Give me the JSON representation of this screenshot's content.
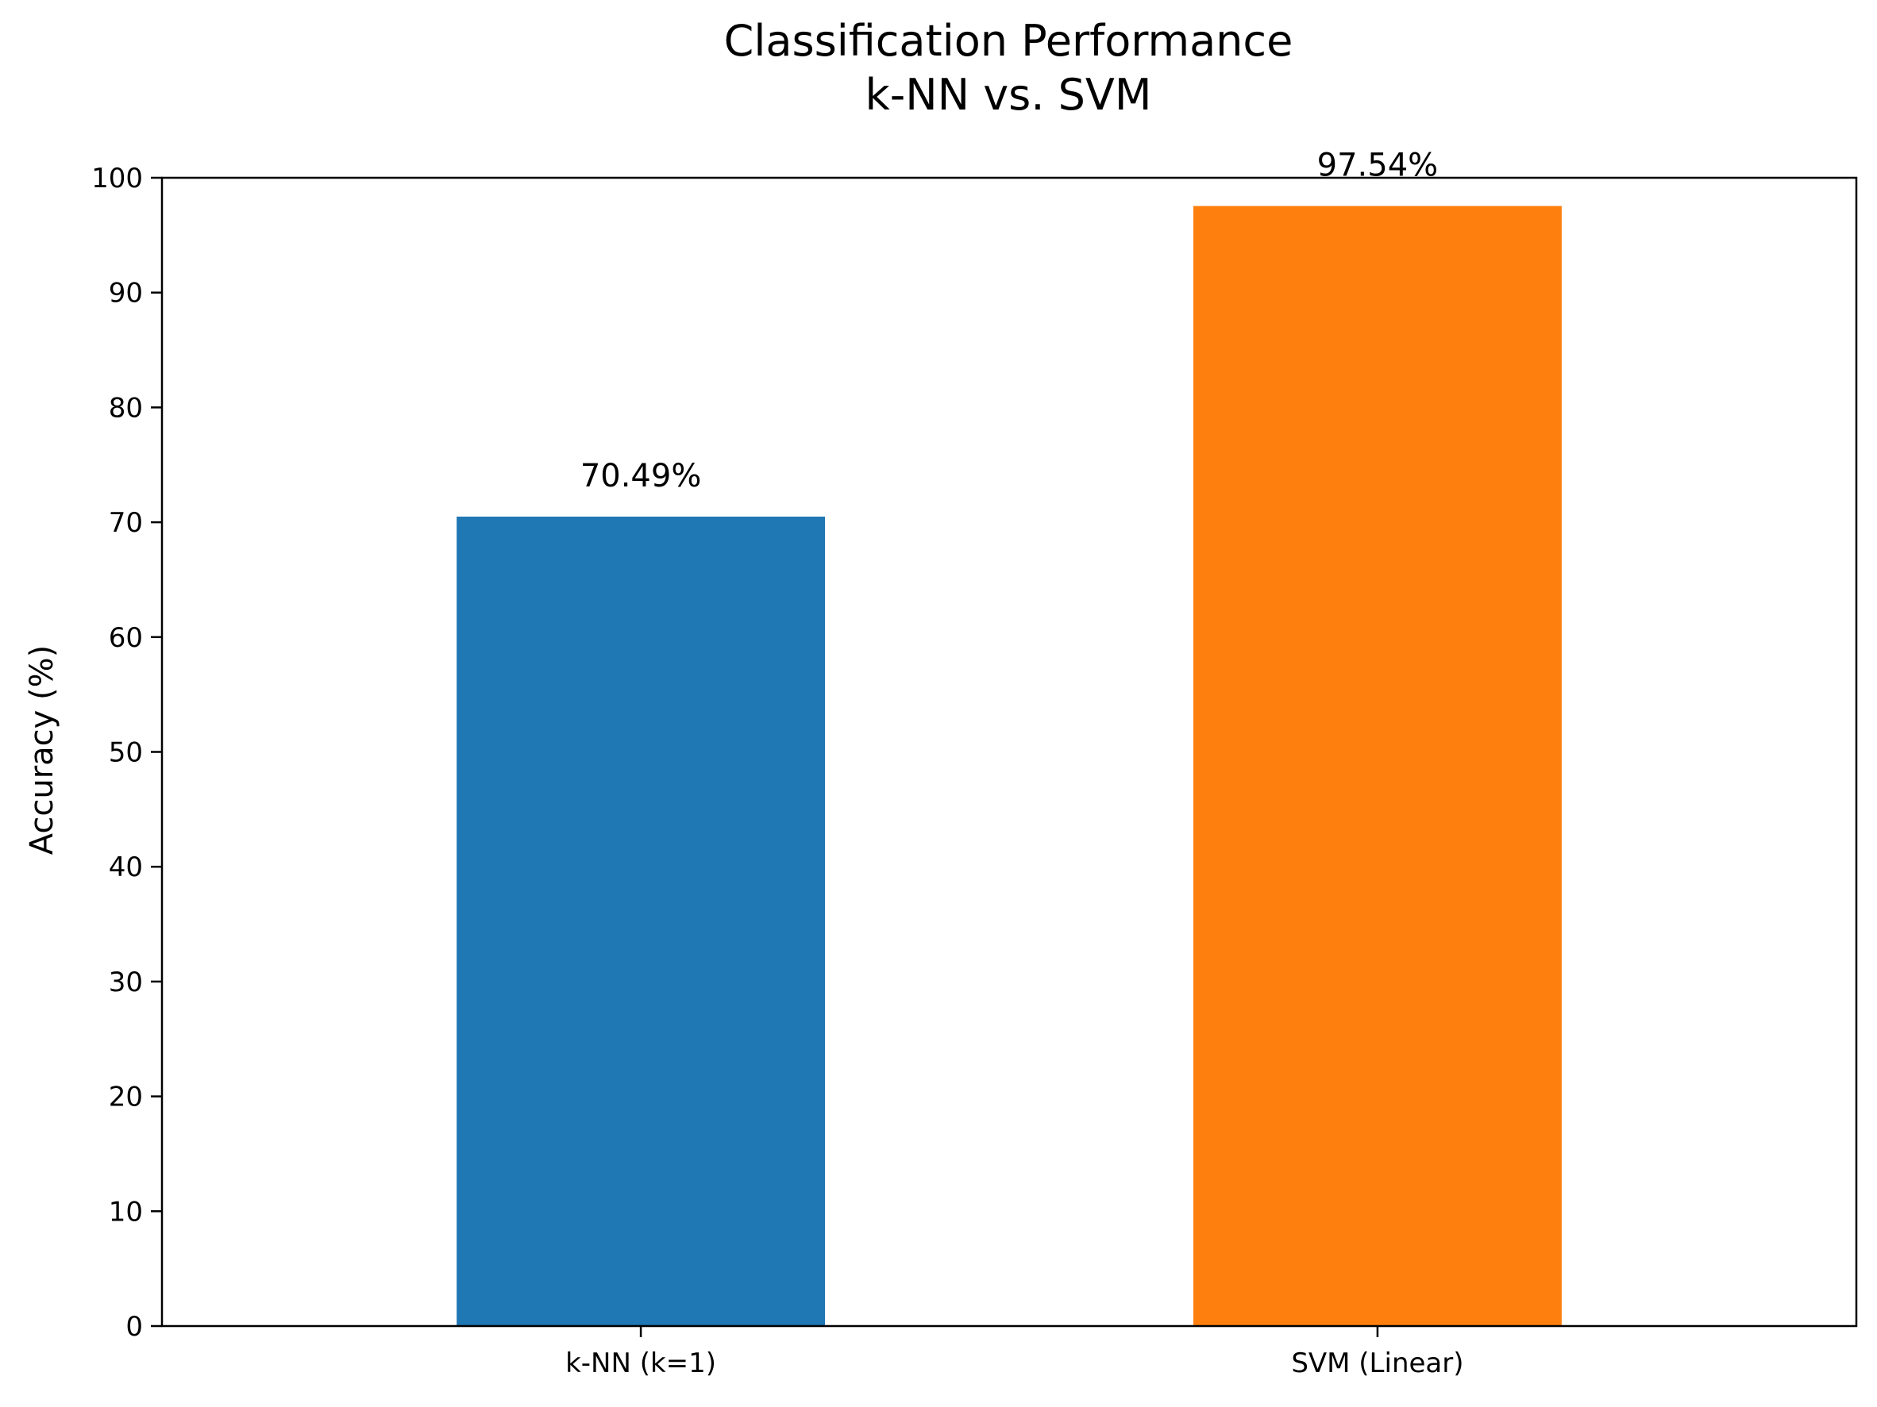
{
  "chart_data": {
    "type": "bar",
    "title": [
      "Classification Performance",
      "k-NN vs. SVM"
    ],
    "xlabel": "",
    "ylabel": "Accuracy (%)",
    "categories": [
      "k-NN (k=1)",
      "SVM (Linear)"
    ],
    "values": [
      70.49,
      97.54
    ],
    "data_labels": [
      "70.49%",
      "97.54%"
    ],
    "colors": [
      "#1f77b4",
      "#ff7f0e"
    ],
    "ylim": [
      0,
      100
    ],
    "yticks": [
      0,
      10,
      20,
      30,
      40,
      50,
      60,
      70,
      80,
      90,
      100
    ],
    "grid": false,
    "legend": "none"
  }
}
